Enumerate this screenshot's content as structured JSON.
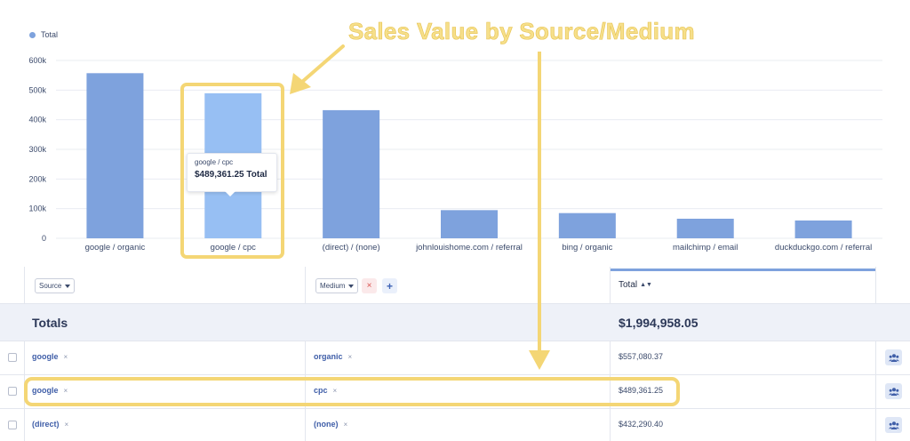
{
  "chart_data": {
    "type": "bar",
    "title": "",
    "xlabel": "",
    "ylabel": "",
    "ylim": [
      0,
      600000
    ],
    "yticks": [
      "0",
      "100k",
      "200k",
      "300k",
      "400k",
      "500k",
      "600k"
    ],
    "categories": [
      "google / organic",
      "google / cpc",
      "(direct) / (none)",
      "johnlouishome.com / referral",
      "bing / organic",
      "mailchimp / email",
      "duckduckgo.com / referral"
    ],
    "series": [
      {
        "name": "Total",
        "values": [
          557080.37,
          489361.25,
          432290.4,
          95000,
          85000,
          66000,
          60000
        ]
      }
    ],
    "highlighted_category": "google / cpc",
    "colors": {
      "bar": "#7ea2dd",
      "bar_highlight": "#97bff3",
      "grid": "#e9ecf2"
    },
    "grid": true,
    "legend_position": "top-left"
  },
  "legend": {
    "label": "Total"
  },
  "tooltip": {
    "label": "google / cpc",
    "value": "$489,361.25 Total"
  },
  "annotation": {
    "title": "Sales Value by Source/Medium",
    "color": "#f4d675"
  },
  "table": {
    "header": {
      "source_dropdown": "Source",
      "medium_dropdown": "Medium",
      "remove_icon": "×",
      "add_icon": "+",
      "total_column": "Total",
      "sort_icon": "▲▼"
    },
    "totals": {
      "label": "Totals",
      "value": "$1,994,958.05"
    },
    "rows": [
      {
        "source": "google",
        "medium": "organic",
        "total": "$557,080.37"
      },
      {
        "source": "google",
        "medium": "cpc",
        "total": "$489,361.25"
      },
      {
        "source": "(direct)",
        "medium": "(none)",
        "total": "$432,290.40"
      }
    ],
    "chip_remove": "×"
  }
}
